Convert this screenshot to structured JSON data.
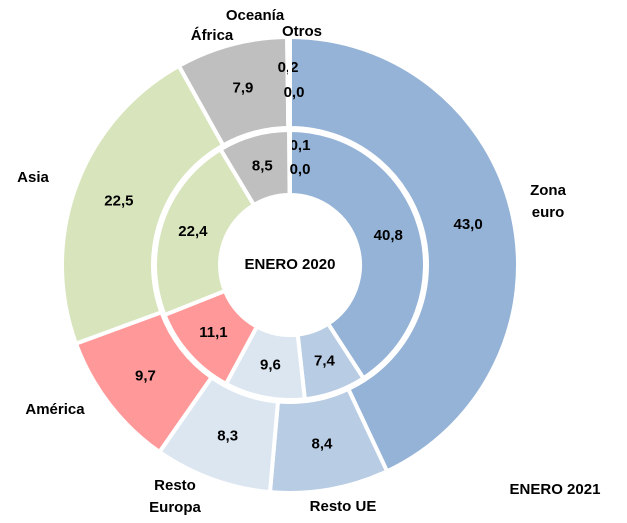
{
  "chart_data": {
    "type": "donut",
    "categories": [
      "Zona euro",
      "Resto UE",
      "Resto Europa",
      "América",
      "Asia",
      "África",
      "Oceanía",
      "Otros"
    ],
    "colors": [
      "#95b3d7",
      "#b8cce4",
      "#dce6f1",
      "#ff9999",
      "#d7e4bc",
      "#bfbfbf",
      "#bfbfbf",
      "#bfbfbf"
    ],
    "series": [
      {
        "name": "ENERO 2020",
        "values": [
          40.8,
          7.4,
          9.6,
          11.1,
          22.4,
          8.5,
          0.1,
          0.0
        ],
        "value_labels": [
          "40,8",
          "7,4",
          "9,6",
          "11,1",
          "22,4",
          "8,5",
          "0,1",
          "0,0"
        ]
      },
      {
        "name": "ENERO 2021",
        "values": [
          43.0,
          8.4,
          8.3,
          9.7,
          22.5,
          7.9,
          0.2,
          0.0
        ],
        "value_labels": [
          "43,0",
          "8,4",
          "8,3",
          "9,7",
          "22,5",
          "7,9",
          "0,2",
          "0,0"
        ]
      }
    ]
  }
}
